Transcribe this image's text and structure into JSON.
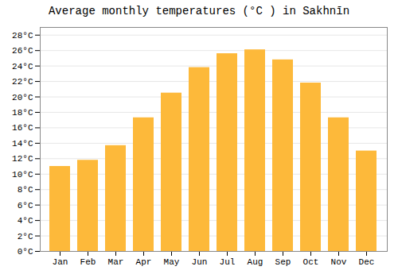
{
  "chart_data": {
    "type": "bar",
    "title": "Average monthly temperatures (°C ) in Sakhnīn",
    "categories": [
      "Jan",
      "Feb",
      "Mar",
      "Apr",
      "May",
      "Jun",
      "Jul",
      "Aug",
      "Sep",
      "Oct",
      "Nov",
      "Dec"
    ],
    "values": [
      11.0,
      11.8,
      13.7,
      17.3,
      20.5,
      23.8,
      25.6,
      26.1,
      24.8,
      21.8,
      17.3,
      13.0
    ],
    "color": "#FDB93A",
    "ylim": [
      0,
      29
    ],
    "yticks": [
      {
        "value": 0,
        "label": "0°C"
      },
      {
        "value": 2,
        "label": "2°C"
      },
      {
        "value": 4,
        "label": "4°C"
      },
      {
        "value": 6,
        "label": "6°C"
      },
      {
        "value": 8,
        "label": "8°C"
      },
      {
        "value": 10,
        "label": "10°C"
      },
      {
        "value": 12,
        "label": "12°C"
      },
      {
        "value": 14,
        "label": "14°C"
      },
      {
        "value": 16,
        "label": "16°C"
      },
      {
        "value": 18,
        "label": "18°C"
      },
      {
        "value": 20,
        "label": "20°C"
      },
      {
        "value": 22,
        "label": "22°C"
      },
      {
        "value": 24,
        "label": "24°C"
      },
      {
        "value": 26,
        "label": "26°C"
      },
      {
        "value": 28,
        "label": "28°C"
      }
    ],
    "grid": true
  }
}
